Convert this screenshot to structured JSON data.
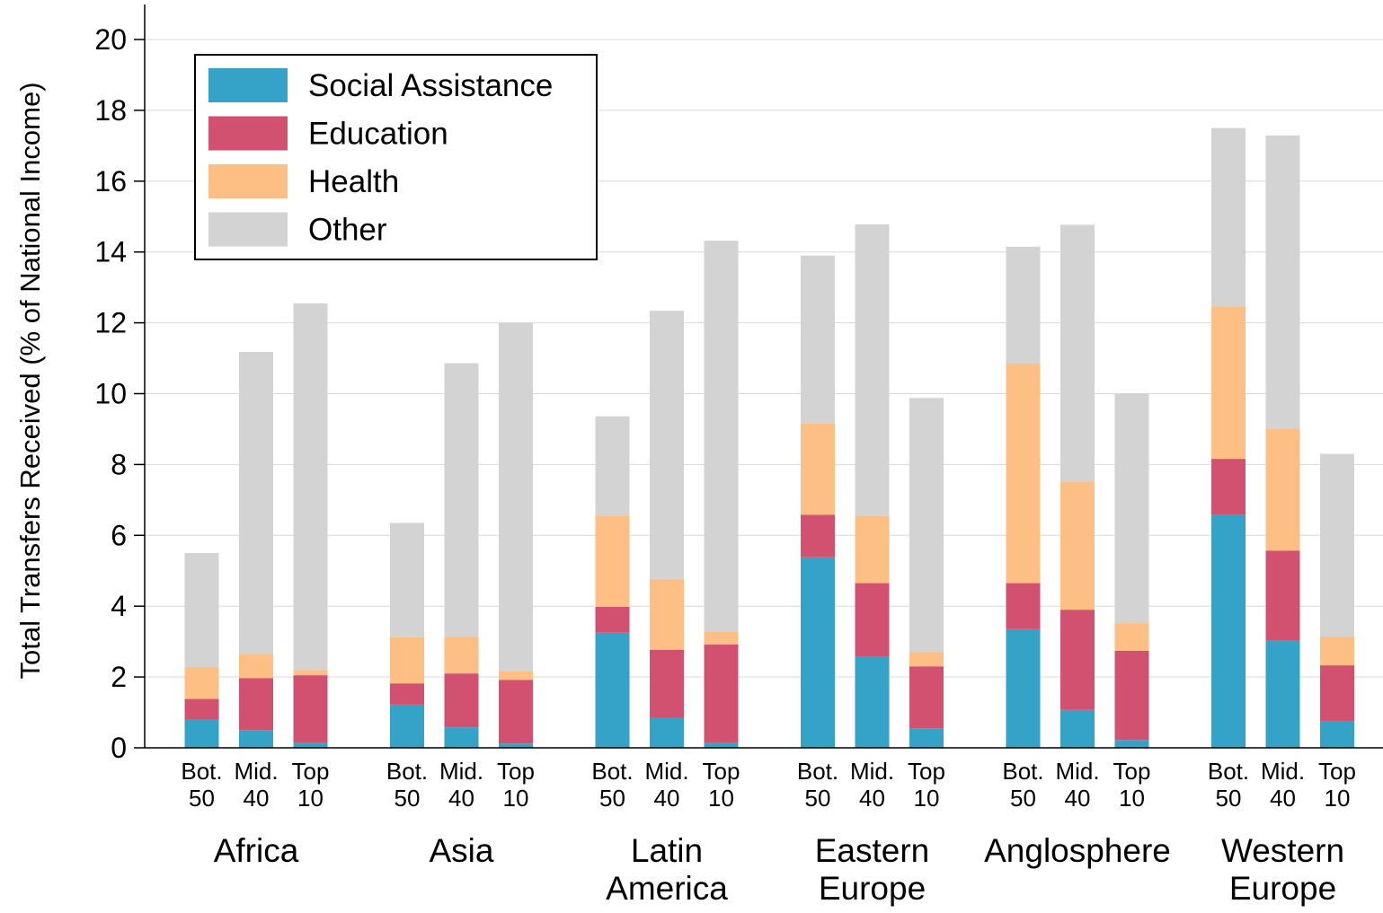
{
  "chart_data": {
    "type": "bar",
    "stacked": true,
    "ylabel": "Total Transfers Received (% of National Income)",
    "xlabel": "",
    "ylim": [
      0,
      21
    ],
    "yticks": [
      0,
      2,
      4,
      6,
      8,
      10,
      12,
      14,
      16,
      18,
      20
    ],
    "grid": "horizontal",
    "legend_position": "top-left",
    "groups": [
      {
        "label": "Africa",
        "label_lines": [
          "Africa"
        ]
      },
      {
        "label": "Asia",
        "label_lines": [
          "Asia"
        ]
      },
      {
        "label": "Latin America",
        "label_lines": [
          "Latin",
          "America"
        ]
      },
      {
        "label": "Eastern Europe",
        "label_lines": [
          "Eastern",
          "Europe"
        ]
      },
      {
        "label": "Anglosphere",
        "label_lines": [
          "Anglosphere"
        ]
      },
      {
        "label": "Western Europe",
        "label_lines": [
          "Western",
          "Europe"
        ]
      }
    ],
    "sub_categories": [
      {
        "label": "Bot. 50",
        "lines": [
          "Bot.",
          "50"
        ]
      },
      {
        "label": "Mid. 40",
        "lines": [
          "Mid.",
          "40"
        ]
      },
      {
        "label": "Top 10",
        "lines": [
          "Top",
          "10"
        ]
      }
    ],
    "series": [
      {
        "name": "Social Assistance",
        "color": "#35a2c8",
        "values": [
          0.8,
          0.5,
          0.15,
          1.22,
          0.58,
          0.12,
          3.25,
          0.85,
          0.15,
          5.38,
          2.57,
          0.55,
          3.35,
          1.07,
          0.22,
          6.58,
          3.02,
          0.75
        ]
      },
      {
        "name": "Education",
        "color": "#d25070",
        "values": [
          0.58,
          1.47,
          1.9,
          0.6,
          1.52,
          1.8,
          0.73,
          1.92,
          2.77,
          1.2,
          2.08,
          1.75,
          1.3,
          2.83,
          2.52,
          1.58,
          2.55,
          1.58
        ]
      },
      {
        "name": "Health",
        "color": "#fdbf84",
        "values": [
          0.9,
          0.68,
          0.15,
          1.3,
          1.03,
          0.25,
          2.58,
          2.0,
          0.35,
          2.58,
          1.9,
          0.4,
          6.2,
          3.62,
          0.78,
          4.3,
          3.45,
          0.8
        ]
      },
      {
        "name": "Other",
        "color": "#d3d3d3",
        "values": [
          3.22,
          8.53,
          10.35,
          3.23,
          7.73,
          9.83,
          2.8,
          7.57,
          11.05,
          4.74,
          8.23,
          7.18,
          3.3,
          7.25,
          6.48,
          5.04,
          8.27,
          5.17
        ]
      }
    ]
  }
}
